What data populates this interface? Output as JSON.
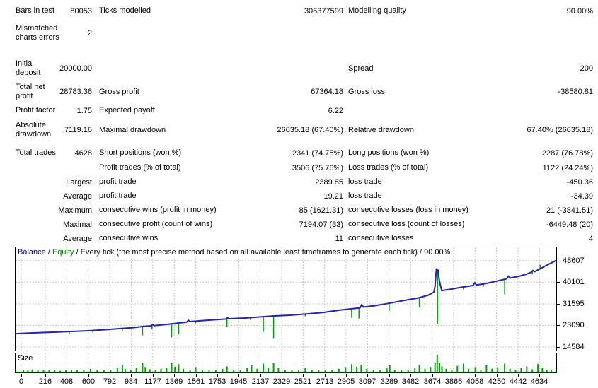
{
  "report": {
    "rows": [
      {
        "c1l": "Bars in test",
        "c1v": "80053",
        "c2l": "Ticks modelled",
        "c2v": "306377599",
        "c3l": "Modelling quality",
        "c3v": "90.00%"
      },
      {
        "c1l": "Mismatched charts errors",
        "c1v": "2",
        "c2l": "",
        "c2v": "",
        "c3l": "",
        "c3v": ""
      },
      {
        "c1l": "Initial deposit",
        "c1v": "20000.00",
        "c2l": "",
        "c2v": "",
        "c3l": "Spread",
        "c3v": "200"
      },
      {
        "c1l": "Total net profit",
        "c1v": "28783.36",
        "c2l": "Gross profit",
        "c2v": "67364.18",
        "c3l": "Gross loss",
        "c3v": "-38580.81"
      },
      {
        "c1l": "Profit factor",
        "c1v": "1.75",
        "c2l": "Expected payoff",
        "c2v": "6.22",
        "c3l": "",
        "c3v": ""
      },
      {
        "c1l": "Absolute drawdown",
        "c1v": "7119.16",
        "c2l": "Maximal drawdown",
        "c2v": "26635.18 (67.40%)",
        "c3l": "Relative drawdown",
        "c3v": "67.40% (26635.18)"
      },
      {
        "c1l": "Total trades",
        "c1v": "4628",
        "c2l": "Short positions (won %)",
        "c2v": "2341 (74.75%)",
        "c3l": "Long positions (won %)",
        "c3v": "2287 (76.78%)"
      },
      {
        "c1l": "",
        "c1v": "",
        "c2l": "Profit trades (% of total)",
        "c2v": "3506 (75.76%)",
        "c3l": "Loss trades (% of total)",
        "c3v": "1122 (24.24%)"
      },
      {
        "c1l": "",
        "c1v": "Largest",
        "c2l": "profit trade",
        "c2v": "2389.85",
        "c3l": "loss trade",
        "c3v": "-450.36"
      },
      {
        "c1l": "",
        "c1v": "Average",
        "c2l": "profit trade",
        "c2v": "19.21",
        "c3l": "loss trade",
        "c3v": "-34.39"
      },
      {
        "c1l": "",
        "c1v": "Maximum",
        "c2l": "consecutive wins (profit in money)",
        "c2v": "85 (1621.31)",
        "c3l": "consecutive losses (loss in money)",
        "c3v": "21 (-3841.51)"
      },
      {
        "c1l": "",
        "c1v": "Maximal",
        "c2l": "consecutive profit (count of wins)",
        "c2v": "7194.07 (33)",
        "c3l": "consecutive loss (count of losses)",
        "c3v": "-6449.48 (20)"
      },
      {
        "c1l": "",
        "c1v": "Average",
        "c2l": "consecutive wins",
        "c2v": "11",
        "c3l": "consecutive losses",
        "c3v": "4"
      }
    ]
  },
  "chart_data": [
    {
      "type": "line",
      "title_parts": [
        {
          "text": "Balance",
          "color": "#000080"
        },
        {
          "text": " / ",
          "color": "#000000"
        },
        {
          "text": "Equity",
          "color": "#008000"
        },
        {
          "text": " / Every tick (the most precise method based on all available least timeframes to generate each tick) / 90.00%",
          "color": "#000000"
        }
      ],
      "x_ticks": [
        0,
        216,
        408,
        600,
        792,
        984,
        1177,
        1369,
        1561,
        1753,
        1945,
        2137,
        2329,
        2521,
        2713,
        2905,
        3097,
        3289,
        3482,
        3674,
        3866,
        4058,
        4250,
        4442,
        4634
      ],
      "y_ticks": [
        48607,
        40101,
        31595,
        23090,
        14584
      ],
      "xlim": [
        -50,
        4784
      ],
      "ylim": [
        13200,
        53800
      ],
      "grid_color": "#c8c8c8",
      "balance": {
        "name": "Balance",
        "color": "#2222b2",
        "points": [
          [
            -50,
            19800
          ],
          [
            0,
            19950
          ],
          [
            150,
            20200
          ],
          [
            300,
            20450
          ],
          [
            450,
            20700
          ],
          [
            600,
            21000
          ],
          [
            750,
            21400
          ],
          [
            900,
            21900
          ],
          [
            1000,
            22200
          ],
          [
            1100,
            22700
          ],
          [
            1160,
            22900
          ],
          [
            1175,
            23400
          ],
          [
            1190,
            23000
          ],
          [
            1300,
            23500
          ],
          [
            1400,
            24000
          ],
          [
            1480,
            24400
          ],
          [
            1495,
            25100
          ],
          [
            1510,
            24600
          ],
          [
            1600,
            24900
          ],
          [
            1700,
            25200
          ],
          [
            1830,
            25600
          ],
          [
            1845,
            26100
          ],
          [
            1860,
            25700
          ],
          [
            2000,
            26000
          ],
          [
            2100,
            26300
          ],
          [
            2250,
            26800
          ],
          [
            2400,
            27100
          ],
          [
            2550,
            27600
          ],
          [
            2700,
            28200
          ],
          [
            2850,
            29100
          ],
          [
            2950,
            29600
          ],
          [
            3030,
            30000
          ],
          [
            3045,
            31300
          ],
          [
            3060,
            30300
          ],
          [
            3150,
            30800
          ],
          [
            3250,
            31500
          ],
          [
            3350,
            32300
          ],
          [
            3450,
            33100
          ],
          [
            3550,
            33900
          ],
          [
            3640,
            35000
          ],
          [
            3690,
            36200
          ],
          [
            3700,
            38500
          ],
          [
            3712,
            45300
          ],
          [
            3728,
            44700
          ],
          [
            3738,
            40800
          ],
          [
            3748,
            38900
          ],
          [
            3760,
            36800
          ],
          [
            3800,
            37100
          ],
          [
            3850,
            37400
          ],
          [
            3900,
            37800
          ],
          [
            3950,
            38200
          ],
          [
            4000,
            38500
          ],
          [
            4040,
            38800
          ],
          [
            4055,
            39900
          ],
          [
            4070,
            39000
          ],
          [
            4150,
            39500
          ],
          [
            4240,
            40400
          ],
          [
            4300,
            41000
          ],
          [
            4340,
            41400
          ],
          [
            4355,
            42500
          ],
          [
            4370,
            41700
          ],
          [
            4450,
            42400
          ],
          [
            4520,
            43300
          ],
          [
            4560,
            44000
          ],
          [
            4575,
            44700
          ],
          [
            4590,
            44200
          ],
          [
            4650,
            45600
          ],
          [
            4700,
            46800
          ],
          [
            4745,
            47800
          ],
          [
            4784,
            48650
          ]
        ]
      },
      "equity": {
        "name": "Equity",
        "color": "#00a202",
        "spikes": [
          [
            430,
            19900
          ],
          [
            640,
            20300
          ],
          [
            905,
            20900
          ],
          [
            1085,
            19100
          ],
          [
            1170,
            21600
          ],
          [
            1345,
            18400
          ],
          [
            1408,
            19600
          ],
          [
            1560,
            23900
          ],
          [
            1840,
            22600
          ],
          [
            2050,
            25200
          ],
          [
            2165,
            20500
          ],
          [
            2257,
            18100
          ],
          [
            2540,
            26700
          ],
          [
            2800,
            28300
          ],
          [
            2955,
            26100
          ],
          [
            3020,
            25800
          ],
          [
            3290,
            28800
          ],
          [
            3560,
            30200
          ],
          [
            3722,
            23600
          ],
          [
            3955,
            37200
          ],
          [
            4133,
            38300
          ],
          [
            4323,
            35300
          ],
          [
            4570,
            43200
          ],
          [
            4640,
            46900
          ]
        ]
      }
    },
    {
      "type": "bar",
      "title": "Size",
      "color": "#00a202",
      "ymax": 1,
      "bars": [
        [
          20,
          0.1
        ],
        [
          60,
          0.08
        ],
        [
          100,
          0.14
        ],
        [
          150,
          0.07
        ],
        [
          200,
          0.12
        ],
        [
          250,
          0.08
        ],
        [
          300,
          0.1
        ],
        [
          350,
          0.06
        ],
        [
          400,
          0.09
        ],
        [
          450,
          0.12
        ],
        [
          500,
          0.08
        ],
        [
          560,
          0.1
        ],
        [
          620,
          0.18
        ],
        [
          680,
          0.1
        ],
        [
          740,
          0.08
        ],
        [
          800,
          0.12
        ],
        [
          860,
          0.25
        ],
        [
          905,
          0.42
        ],
        [
          930,
          0.18
        ],
        [
          980,
          0.1
        ],
        [
          1030,
          0.22
        ],
        [
          1085,
          0.5
        ],
        [
          1110,
          0.28
        ],
        [
          1150,
          0.15
        ],
        [
          1200,
          0.12
        ],
        [
          1250,
          0.18
        ],
        [
          1300,
          0.25
        ],
        [
          1345,
          0.55
        ],
        [
          1375,
          0.3
        ],
        [
          1408,
          0.45
        ],
        [
          1450,
          0.18
        ],
        [
          1510,
          0.12
        ],
        [
          1560,
          0.28
        ],
        [
          1620,
          0.1
        ],
        [
          1680,
          0.08
        ],
        [
          1740,
          0.12
        ],
        [
          1800,
          0.18
        ],
        [
          1840,
          0.32
        ],
        [
          1900,
          0.1
        ],
        [
          1960,
          0.08
        ],
        [
          2020,
          0.22
        ],
        [
          2060,
          0.38
        ],
        [
          2110,
          0.18
        ],
        [
          2165,
          0.48
        ],
        [
          2210,
          0.25
        ],
        [
          2257,
          0.52
        ],
        [
          2300,
          0.22
        ],
        [
          2360,
          0.1
        ],
        [
          2420,
          0.08
        ],
        [
          2480,
          0.12
        ],
        [
          2540,
          0.25
        ],
        [
          2600,
          0.08
        ],
        [
          2660,
          0.1
        ],
        [
          2720,
          0.08
        ],
        [
          2780,
          0.12
        ],
        [
          2840,
          0.18
        ],
        [
          2900,
          0.28
        ],
        [
          2955,
          0.45
        ],
        [
          3000,
          0.3
        ],
        [
          3040,
          0.42
        ],
        [
          3090,
          0.18
        ],
        [
          3150,
          0.1
        ],
        [
          3210,
          0.08
        ],
        [
          3270,
          0.2
        ],
        [
          3295,
          0.38
        ],
        [
          3340,
          0.12
        ],
        [
          3400,
          0.08
        ],
        [
          3460,
          0.12
        ],
        [
          3520,
          0.22
        ],
        [
          3560,
          0.4
        ],
        [
          3610,
          0.18
        ],
        [
          3660,
          0.28
        ],
        [
          3700,
          0.55
        ],
        [
          3720,
          1.0
        ],
        [
          3740,
          0.5
        ],
        [
          3762,
          0.32
        ],
        [
          3800,
          0.18
        ],
        [
          3850,
          0.12
        ],
        [
          3900,
          0.35
        ],
        [
          3955,
          0.48
        ],
        [
          4000,
          0.18
        ],
        [
          4060,
          0.28
        ],
        [
          4110,
          0.12
        ],
        [
          4160,
          0.42
        ],
        [
          4210,
          0.18
        ],
        [
          4260,
          0.28
        ],
        [
          4323,
          0.48
        ],
        [
          4370,
          0.18
        ],
        [
          4420,
          0.12
        ],
        [
          4470,
          0.22
        ],
        [
          4520,
          0.32
        ],
        [
          4570,
          0.14
        ],
        [
          4620,
          0.46
        ],
        [
          4660,
          0.22
        ],
        [
          4700,
          0.12
        ],
        [
          4740,
          0.08
        ]
      ]
    }
  ]
}
